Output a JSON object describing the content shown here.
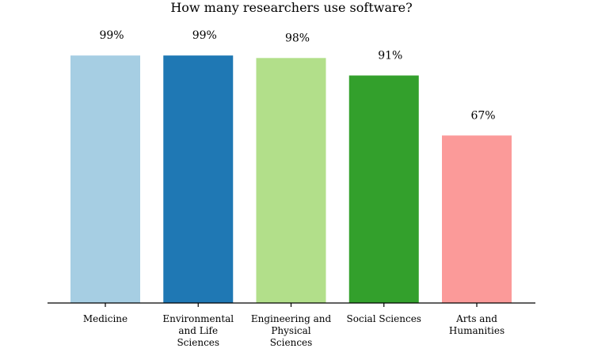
{
  "chart_data": {
    "type": "bar",
    "title": "How many researchers use software?",
    "categories": [
      [
        "Medicine"
      ],
      [
        "Environmental",
        "and Life",
        "Sciences"
      ],
      [
        "Engineering and",
        "Physical",
        "Sciences"
      ],
      [
        "Social Sciences"
      ],
      [
        "Arts and",
        "Humanities"
      ]
    ],
    "values": [
      99,
      99,
      98,
      91,
      67
    ],
    "value_labels": [
      "99%",
      "99%",
      "98%",
      "91%",
      "67%"
    ],
    "colors": [
      "#a6cee3",
      "#1f78b4",
      "#b2df8a",
      "#33a02c",
      "#fb9a99"
    ],
    "ylim": [
      0,
      100
    ],
    "xlabel": "",
    "ylabel": "",
    "grid": false
  }
}
